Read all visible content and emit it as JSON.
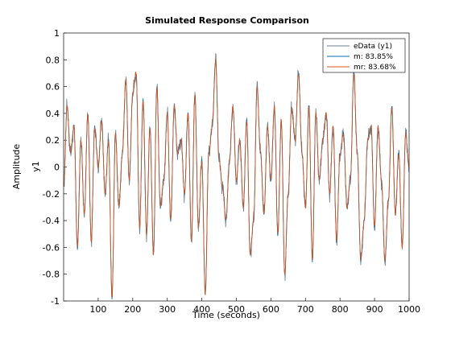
{
  "chart_data": {
    "type": "line",
    "title": "Simulated Response Comparison",
    "xlabel": "Time (seconds)",
    "ylabel": "Amplitude",
    "channel_label": "y1",
    "xlim": [
      0,
      1000
    ],
    "ylim": [
      -1,
      1
    ],
    "xticks": [
      100,
      200,
      300,
      400,
      500,
      600,
      700,
      800,
      900,
      1000
    ],
    "yticks": [
      -1,
      -0.8,
      -0.6,
      -0.4,
      -0.2,
      0,
      0.2,
      0.4,
      0.6,
      0.8,
      1
    ],
    "grid": false,
    "legend_position": "top-right",
    "series": [
      {
        "name": "eData (y1)",
        "color": "#6b7f91"
      },
      {
        "name": "m: 83.85%",
        "color": "#0072bd"
      },
      {
        "name": "mr: 83.68%",
        "color": "#d95319"
      }
    ],
    "x": [
      0,
      10,
      20,
      30,
      40,
      50,
      60,
      70,
      80,
      90,
      100,
      110,
      120,
      130,
      140,
      150,
      160,
      170,
      180,
      190,
      200,
      210,
      220,
      230,
      240,
      250,
      260,
      270,
      280,
      290,
      300,
      310,
      320,
      330,
      340,
      350,
      360,
      370,
      380,
      390,
      400,
      410,
      420,
      430,
      440,
      450,
      460,
      470,
      480,
      490,
      500,
      510,
      520,
      530,
      540,
      550,
      560,
      570,
      580,
      590,
      600,
      610,
      620,
      630,
      640,
      650,
      660,
      670,
      680,
      690,
      700,
      710,
      720,
      730,
      740,
      750,
      760,
      770,
      780,
      790,
      800,
      810,
      820,
      830,
      840,
      850,
      860,
      870,
      880,
      890,
      900,
      910,
      920,
      930,
      940,
      950,
      960,
      970,
      980,
      990,
      1000
    ],
    "y": [
      -0.15,
      0.45,
      0.1,
      0.3,
      -0.6,
      0.2,
      -0.35,
      0.4,
      -0.55,
      0.3,
      0.0,
      0.35,
      -0.2,
      0.2,
      -0.98,
      0.25,
      -0.3,
      0.1,
      0.65,
      -0.1,
      0.55,
      0.7,
      -0.45,
      0.5,
      -0.5,
      0.3,
      -0.65,
      0.6,
      -0.3,
      -0.1,
      0.4,
      -0.4,
      0.45,
      0.1,
      0.2,
      -0.2,
      0.4,
      -0.55,
      0.55,
      -0.45,
      0.05,
      -0.95,
      0.1,
      0.3,
      0.8,
      0.05,
      -0.15,
      -0.4,
      0.05,
      0.45,
      -0.1,
      0.2,
      -0.3,
      0.35,
      -0.65,
      -0.4,
      0.6,
      0.1,
      -0.35,
      0.3,
      -0.1,
      0.45,
      -0.5,
      0.35,
      -0.8,
      -0.2,
      0.45,
      0.2,
      0.7,
      0.1,
      -0.3,
      0.45,
      -0.7,
      0.4,
      -0.1,
      0.2,
      0.4,
      -0.2,
      0.3,
      -0.55,
      0.1,
      0.25,
      -0.3,
      -0.1,
      0.7,
      0.1,
      -0.7,
      -0.4,
      0.2,
      0.3,
      -0.45,
      0.3,
      -0.1,
      -0.7,
      -0.25,
      0.45,
      -0.35,
      0.1,
      -0.6,
      0.25,
      0.0
    ]
  }
}
